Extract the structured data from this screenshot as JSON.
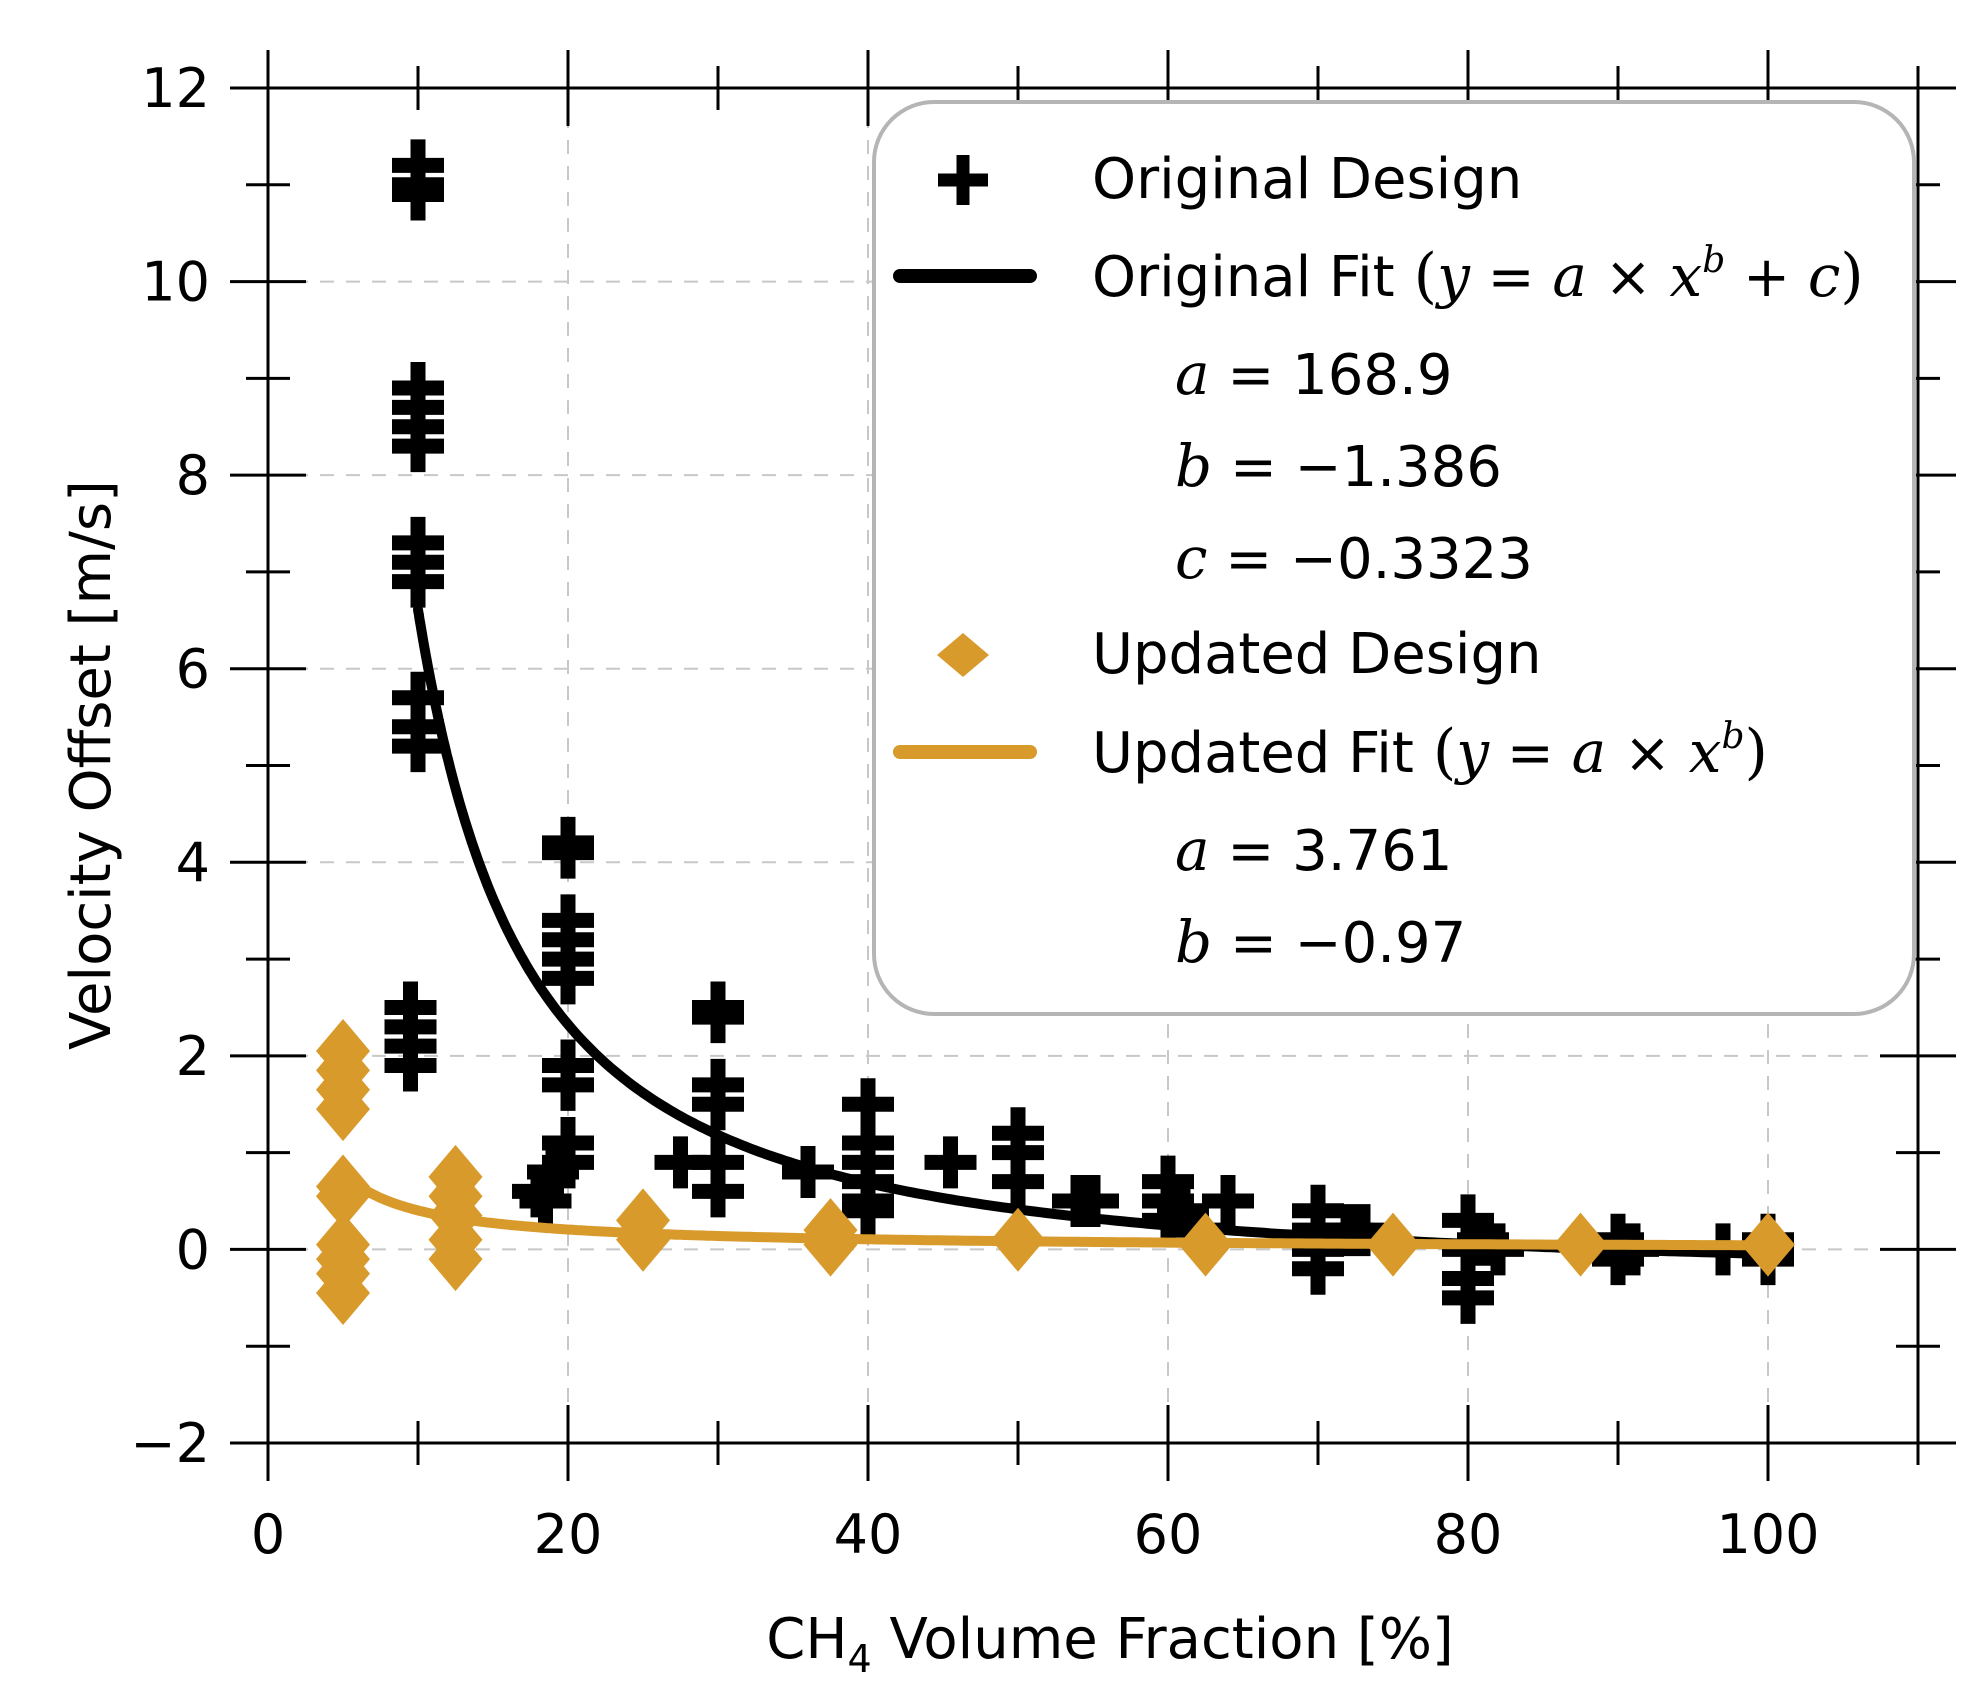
{
  "chart_data": {
    "type": "scatter",
    "xlabel_prefix": "CH",
    "xlabel_sub": "4",
    "xlabel_suffix": " Volume Fraction [%]",
    "ylabel": "Velocity Offset [m/s]",
    "xlim": [
      0,
      110
    ],
    "ylim": [
      -2,
      12
    ],
    "x_ticks": [
      0,
      20,
      40,
      60,
      80,
      100
    ],
    "x_tick_labels": [
      "0",
      "20",
      "40",
      "60",
      "80",
      "100"
    ],
    "y_ticks": [
      -2,
      0,
      2,
      4,
      6,
      8,
      10,
      12
    ],
    "y_tick_labels": [
      "−2",
      "0",
      "2",
      "4",
      "6",
      "8",
      "10",
      "12"
    ],
    "grid": true,
    "legend_position": "top-right",
    "series": [
      {
        "name": "Original Design",
        "marker": "plus",
        "color": "#000000",
        "points": [
          [
            10,
            11.2
          ],
          [
            10,
            11.0
          ],
          [
            10,
            10.9
          ],
          [
            10,
            8.9
          ],
          [
            10,
            8.7
          ],
          [
            10,
            8.5
          ],
          [
            10,
            8.3
          ],
          [
            10,
            7.3
          ],
          [
            10,
            7.1
          ],
          [
            10,
            6.9
          ],
          [
            10,
            5.7
          ],
          [
            10,
            5.4
          ],
          [
            10,
            5.2
          ],
          [
            9.5,
            2.5
          ],
          [
            9.5,
            2.3
          ],
          [
            9.5,
            2.1
          ],
          [
            9.5,
            1.9
          ],
          [
            18,
            0.6
          ],
          [
            18.5,
            0.5
          ],
          [
            19,
            0.8
          ],
          [
            20,
            4.2
          ],
          [
            20,
            4.1
          ],
          [
            20,
            3.4
          ],
          [
            20,
            3.2
          ],
          [
            20,
            3.0
          ],
          [
            20,
            2.8
          ],
          [
            20,
            1.9
          ],
          [
            20,
            1.7
          ],
          [
            20,
            1.1
          ],
          [
            20,
            0.9
          ],
          [
            27.5,
            0.9
          ],
          [
            30,
            2.5
          ],
          [
            30,
            2.4
          ],
          [
            30,
            1.7
          ],
          [
            30,
            1.5
          ],
          [
            30,
            0.9
          ],
          [
            30,
            0.6
          ],
          [
            36,
            0.8
          ],
          [
            40,
            1.5
          ],
          [
            40,
            1.1
          ],
          [
            40,
            0.9
          ],
          [
            40,
            0.7
          ],
          [
            40,
            0.5
          ],
          [
            40,
            0.4
          ],
          [
            45.5,
            0.9
          ],
          [
            50,
            1.2
          ],
          [
            50,
            1.0
          ],
          [
            50,
            0.7
          ],
          [
            54,
            0.5
          ],
          [
            55,
            0.5
          ],
          [
            60,
            0.7
          ],
          [
            60,
            0.5
          ],
          [
            60,
            0.3
          ],
          [
            61,
            0.4
          ],
          [
            62,
            0.2
          ],
          [
            64,
            0.5
          ],
          [
            70,
            0.4
          ],
          [
            70,
            0.2
          ],
          [
            70,
            0.0
          ],
          [
            70,
            -0.2
          ],
          [
            72,
            0.2
          ],
          [
            73,
            0.2
          ],
          [
            80,
            0.3
          ],
          [
            80,
            0.0
          ],
          [
            80,
            -0.3
          ],
          [
            80,
            -0.5
          ],
          [
            81,
            0.1
          ],
          [
            82,
            0.0
          ],
          [
            90,
            0.1
          ],
          [
            90,
            -0.1
          ],
          [
            91,
            0.0
          ],
          [
            97,
            0.0
          ],
          [
            100,
            0.1
          ],
          [
            100,
            0.0
          ],
          [
            100,
            -0.1
          ]
        ]
      },
      {
        "name": "Updated Design",
        "marker": "diamond",
        "color": "#D89A2A",
        "points": [
          [
            5,
            2.05
          ],
          [
            5,
            1.85
          ],
          [
            5,
            1.65
          ],
          [
            5,
            1.45
          ],
          [
            5,
            0.65
          ],
          [
            5,
            0.55
          ],
          [
            5,
            0.05
          ],
          [
            5,
            -0.1
          ],
          [
            5,
            -0.25
          ],
          [
            5,
            -0.45
          ],
          [
            12.5,
            0.75
          ],
          [
            12.5,
            0.55
          ],
          [
            12.5,
            0.35
          ],
          [
            12.5,
            0.1
          ],
          [
            12.5,
            -0.1
          ],
          [
            25,
            0.3
          ],
          [
            25,
            0.1
          ],
          [
            37.5,
            0.2
          ],
          [
            37.5,
            0.05
          ],
          [
            50,
            0.1
          ],
          [
            62.5,
            0.05
          ],
          [
            75,
            0.05
          ],
          [
            87.5,
            0.05
          ],
          [
            100,
            0.05
          ]
        ]
      }
    ],
    "fits": [
      {
        "name": "Original Fit",
        "equation": "y = a × x^b + c",
        "color": "#000000",
        "a": 168.9,
        "b": -1.386,
        "c": -0.3323,
        "x_range": [
          10,
          100
        ]
      },
      {
        "name": "Updated Fit",
        "equation": "y = a × x^b",
        "color": "#D89A2A",
        "a": 3.761,
        "b": -0.97,
        "c": 0,
        "x_range": [
          5,
          100
        ]
      }
    ],
    "legend": {
      "original_design": "Original Design",
      "original_fit": "Original Fit",
      "original_a": "168.9",
      "original_b": "−1.386",
      "original_c": "−0.3323",
      "updated_design": "Updated Design",
      "updated_fit": "Updated Fit",
      "updated_a": "3.761",
      "updated_b": "−0.97"
    }
  }
}
